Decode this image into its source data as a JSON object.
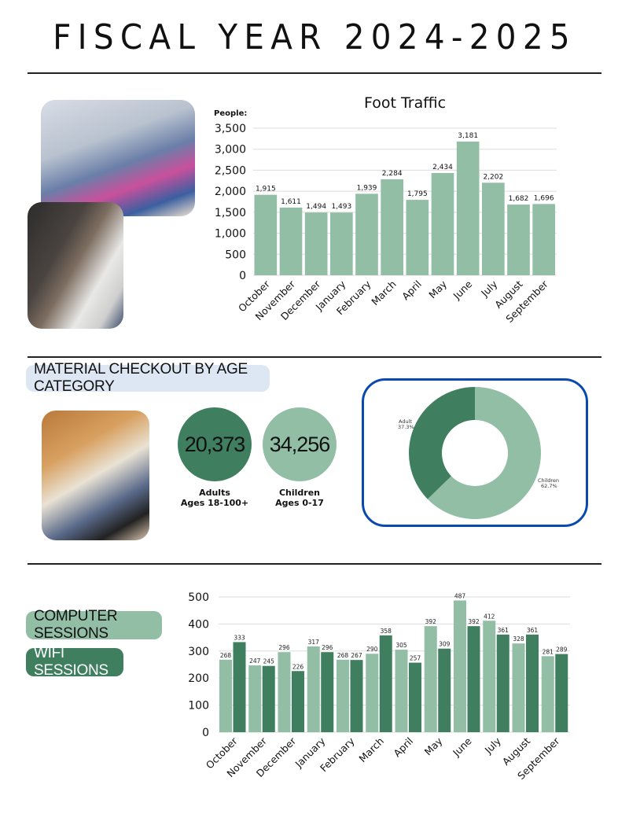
{
  "title": "FISCAL YEAR 2024-2025",
  "colors": {
    "light_green": "#92bea6",
    "dark_green": "#3f7f5f",
    "box_border": "#0a49ad",
    "pill_blue": "#dde6f3"
  },
  "photos": [
    "library-event-photo",
    "bookshelf-photo",
    "checkout-desk-photo"
  ],
  "checkout": {
    "heading": "MATERIAL CHECKOUT BY AGE CATEGORY",
    "adults": {
      "value": "20,373",
      "label1": "Adults",
      "label2": "Ages 18-100+"
    },
    "children": {
      "value": "34,256",
      "label1": "Children",
      "label2": "Ages 0-17"
    }
  },
  "sessions_legend": {
    "computer": "COMPUTER SESSIONS",
    "wifi": "WIFI SESSIONS"
  },
  "chart_data": [
    {
      "type": "bar",
      "title": "Foot Traffic",
      "ylabel": "People:",
      "categories": [
        "October",
        "November",
        "December",
        "January",
        "February",
        "March",
        "April",
        "May",
        "June",
        "July",
        "August",
        "September"
      ],
      "values": [
        1915,
        1611,
        1494,
        1493,
        1939,
        2284,
        1795,
        2434,
        3181,
        2202,
        1682,
        1696
      ],
      "value_labels": [
        "1,915",
        "1,611",
        "1,494",
        "1,493",
        "1,939",
        "2,284",
        "1,795",
        "2,434",
        "3,181",
        "2,202",
        "1,682",
        "1,696"
      ],
      "ylim": [
        0,
        3500
      ],
      "yticks": [
        "0",
        "500",
        "1,000",
        "1,500",
        "2,000",
        "2,500",
        "3,000",
        "3,500"
      ],
      "grid": true
    },
    {
      "type": "pie",
      "donut": true,
      "categories": [
        "Adult",
        "Children"
      ],
      "values": [
        37.3,
        62.7
      ],
      "labels": [
        "37.3%",
        "62.7%"
      ]
    },
    {
      "type": "bar",
      "categories": [
        "October",
        "November",
        "December",
        "January",
        "February",
        "March",
        "April",
        "May",
        "June",
        "July",
        "August",
        "September"
      ],
      "series": [
        {
          "name": "COMPUTER SESSIONS",
          "values": [
            268,
            247,
            296,
            317,
            268,
            290,
            305,
            392,
            487,
            412,
            328,
            281
          ]
        },
        {
          "name": "WIFI SESSIONS",
          "values": [
            333,
            245,
            226,
            296,
            267,
            358,
            257,
            309,
            392,
            361,
            361,
            289
          ]
        }
      ],
      "ylim": [
        0,
        500
      ],
      "yticks": [
        "0",
        "100",
        "200",
        "300",
        "400",
        "500"
      ],
      "grid": true,
      "legend": "left"
    }
  ]
}
